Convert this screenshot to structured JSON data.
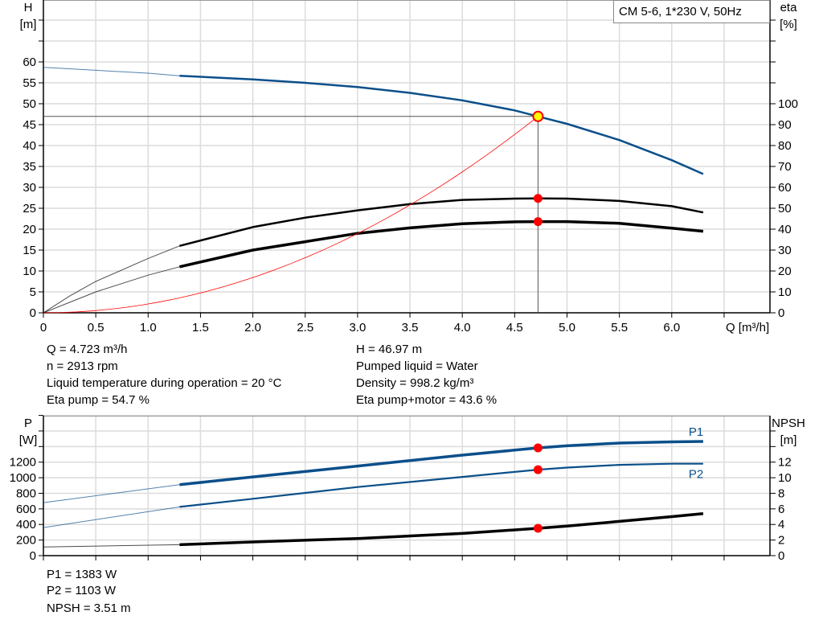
{
  "chart_data": [
    {
      "type": "line",
      "title": "CM 5-6, 1*230 V, 50Hz",
      "xlabel": "Q [m³/h]",
      "ylabel_left": [
        "H",
        "[m]"
      ],
      "ylabel_right": [
        "eta",
        "[%]"
      ],
      "xlim": [
        0,
        6.9
      ],
      "ylim_left": [
        0,
        74.8
      ],
      "ylim_right": [
        0,
        149.6
      ],
      "grid": true,
      "xticks": [
        "0",
        "0.5",
        "1.0",
        "1.5",
        "2.0",
        "2.5",
        "3.0",
        "3.5",
        "4.0",
        "4.5",
        "5.0",
        "5.5",
        "6.0"
      ],
      "yticks_left": [
        "0",
        "5",
        "10",
        "15",
        "20",
        "25",
        "30",
        "35",
        "40",
        "45",
        "50",
        "55",
        "60"
      ],
      "yticks_right": [
        "0",
        "10",
        "20",
        "30",
        "40",
        "50",
        "60",
        "70",
        "80",
        "90",
        "100"
      ],
      "series": [
        {
          "axis": "left",
          "color": "#0b4f8a",
          "thick_from": 1.3,
          "x": [
            0,
            0.5,
            1.0,
            1.3,
            2.0,
            2.5,
            3.0,
            3.5,
            4.0,
            4.5,
            4.723,
            5.0,
            5.5,
            6.0,
            6.3
          ],
          "y": [
            58.7,
            58.0,
            57.3,
            56.7,
            55.8,
            55.0,
            54.0,
            52.6,
            50.8,
            48.4,
            46.97,
            45.2,
            41.3,
            36.5,
            33.2
          ]
        },
        {
          "axis": "right",
          "color": "#000000",
          "thick_from": 1.3,
          "x": [
            0,
            0.25,
            0.5,
            1.0,
            1.3,
            2.0,
            2.5,
            3.0,
            3.5,
            4.0,
            4.5,
            4.723,
            5.0,
            5.5,
            6.0,
            6.3
          ],
          "y": [
            0,
            8,
            15,
            26,
            32,
            41,
            45.5,
            49,
            52,
            54,
            54.6,
            54.7,
            54.6,
            53.5,
            51,
            48
          ]
        },
        {
          "axis": "right",
          "color": "#000000",
          "thick_from": 1.3,
          "width": 3.5,
          "x": [
            0,
            0.25,
            0.5,
            1.0,
            1.3,
            2.0,
            2.5,
            3.0,
            3.5,
            4.0,
            4.5,
            4.723,
            5.0,
            5.5,
            6.0,
            6.3
          ],
          "y": [
            0,
            5,
            10,
            18,
            22,
            30,
            34,
            38,
            40.6,
            42.6,
            43.5,
            43.6,
            43.6,
            42.8,
            40.5,
            39
          ]
        }
      ],
      "operating_point": {
        "Q": 4.723,
        "H": 46.97,
        "eta_pump": 54.7,
        "eta_pump_motor": 43.6
      },
      "system_curve_color": "#ff0000"
    },
    {
      "type": "line",
      "ylabel_left": [
        "P",
        "[W]"
      ],
      "ylabel_right": [
        "NPSH",
        "[m]"
      ],
      "xlim": [
        0,
        6.9
      ],
      "ylim_left": [
        0,
        1804
      ],
      "ylim_right": [
        0,
        18.04
      ],
      "grid": true,
      "yticks_left": [
        "0",
        "200",
        "400",
        "600",
        "800",
        "1000",
        "1200"
      ],
      "yticks_right": [
        "0",
        "2",
        "4",
        "6",
        "8",
        "10",
        "12"
      ],
      "series": [
        {
          "name": "P1",
          "axis": "left",
          "color": "#0b4f8a",
          "thick_from": 1.3,
          "width": 3.5,
          "x": [
            0,
            1.3,
            2.0,
            3.0,
            4.0,
            4.723,
            5.0,
            5.5,
            6.0,
            6.3
          ],
          "y": [
            680,
            910,
            1010,
            1150,
            1290,
            1383,
            1410,
            1445,
            1460,
            1465
          ]
        },
        {
          "name": "P2",
          "axis": "left",
          "color": "#0b4f8a",
          "thick_from": 1.3,
          "width": 2.2,
          "x": [
            0,
            1.3,
            2.0,
            3.0,
            4.0,
            4.723,
            5.0,
            5.5,
            6.0,
            6.3
          ],
          "y": [
            360,
            625,
            730,
            880,
            1010,
            1103,
            1130,
            1165,
            1180,
            1180
          ]
        },
        {
          "axis": "right",
          "color": "#000000",
          "thick_from": 1.3,
          "width": 3.5,
          "x": [
            0,
            1.3,
            2.0,
            3.0,
            4.0,
            4.723,
            5.0,
            5.5,
            6.0,
            6.3
          ],
          "y": [
            1.1,
            1.4,
            1.75,
            2.2,
            2.85,
            3.51,
            3.8,
            4.4,
            5.0,
            5.4
          ]
        }
      ],
      "operating_point": {
        "Q": 4.723,
        "P1": 1383,
        "P2": 1103,
        "NPSH": 3.51
      }
    }
  ],
  "info": {
    "q": "Q = 4.723 m³/h",
    "n": "n = 2913 rpm",
    "temp": "Liquid temperature during operation = 20 °C",
    "eta_pump": "Eta pump = 54.7 %",
    "h": "H = 46.97 m",
    "liquid": "Pumped liquid = Water",
    "density": "Density = 998.2 kg/m³",
    "eta_total": "Eta pump+motor = 43.6 %",
    "p1": "P1 = 1383 W",
    "p2": "P2 = 1103 W",
    "npsh": "NPSH = 3.51 m"
  }
}
